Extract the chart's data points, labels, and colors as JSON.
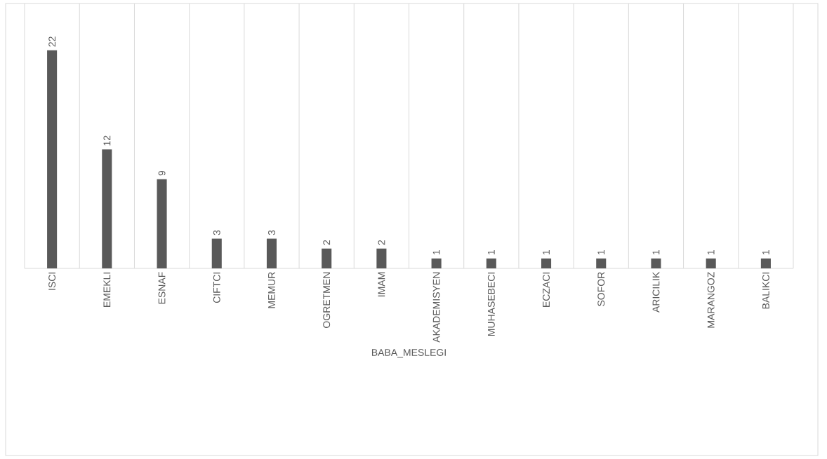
{
  "chart_data": {
    "type": "bar",
    "xlabel": "BABA_MESLEGI",
    "categories": [
      "ISCI",
      "EMEKLI",
      "ESNAF",
      "CIFTCI",
      "MEMUR",
      "OGRETMEN",
      "IMAM",
      "AKADEMISYEN",
      "MUHASEBECI",
      "ECZACI",
      "SOFOR",
      "ARICILIK",
      "MARANGOZ",
      "BALIKCI"
    ],
    "values": [
      22,
      12,
      9,
      3,
      3,
      2,
      2,
      1,
      1,
      1,
      1,
      1,
      1,
      1
    ],
    "color": "#595959",
    "data_labels": true,
    "grid": "x"
  }
}
